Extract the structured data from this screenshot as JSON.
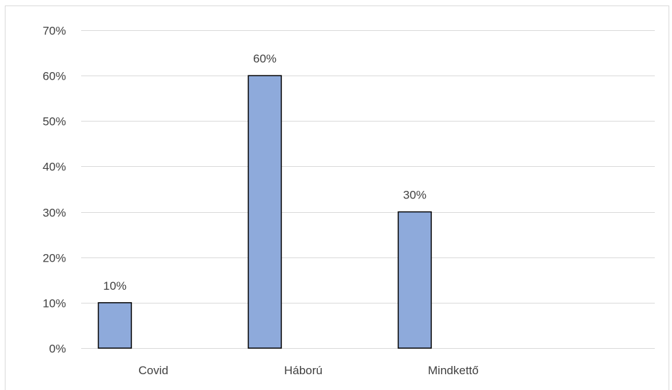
{
  "chart_data": {
    "type": "bar",
    "categories": [
      "Covid",
      "Háború",
      "Mindkettő"
    ],
    "values": [
      10,
      60,
      30
    ],
    "value_format": "percent",
    "ylim": [
      0,
      70
    ],
    "y_ticks": [
      0,
      10,
      20,
      30,
      40,
      50,
      60,
      70
    ],
    "y_tick_labels": [
      "0%",
      "10%",
      "20%",
      "30%",
      "40%",
      "50%",
      "60%",
      "70%"
    ],
    "data_labels": [
      "10%",
      "60%",
      "30%"
    ],
    "grid": true,
    "legend": "none",
    "colors": {
      "bar_fill": "#8eaadb",
      "bar_stroke": "#000000",
      "grid": "#d9d9d9",
      "text": "#404040"
    }
  }
}
